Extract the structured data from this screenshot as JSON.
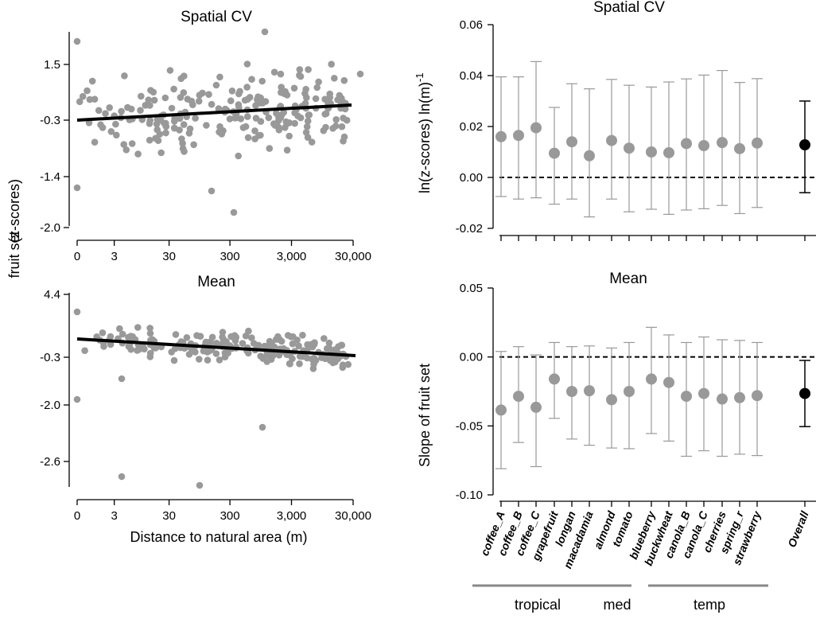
{
  "chart_data": [
    {
      "id": "left_top",
      "type": "scatter",
      "title": "Spatial CV",
      "xlabel": "",
      "ylabel": "",
      "xscale": "log10(d+1)",
      "x_ticks": [
        {
          "v": 0,
          "label": "0"
        },
        {
          "v": 3,
          "label": "3"
        },
        {
          "v": 30,
          "label": "30"
        },
        {
          "v": 300,
          "label": "300"
        },
        {
          "v": 3000,
          "label": "3,000"
        },
        {
          "v": 30000,
          "label": "30,000"
        }
      ],
      "y_ticks": [
        "1.5",
        "-0.3",
        "-1.4",
        "-2.0"
      ],
      "fit_line": {
        "x": [
          0,
          30000
        ],
        "y": [
          -0.3,
          0.0
        ]
      },
      "color": "#999999",
      "line_color": "#000000"
    },
    {
      "id": "left_bottom",
      "type": "scatter",
      "title": "Mean",
      "xlabel": "Distance to natural area (m)",
      "ylabel": "",
      "xscale": "log10(d+1)",
      "x_ticks": [
        {
          "v": 0,
          "label": "0"
        },
        {
          "v": 3,
          "label": "3"
        },
        {
          "v": 30,
          "label": "30"
        },
        {
          "v": 300,
          "label": "300"
        },
        {
          "v": 3000,
          "label": "3,000"
        },
        {
          "v": 30000,
          "label": "30,000"
        }
      ],
      "y_ticks": [
        "4.4",
        "-0.3",
        "-2.0",
        "-2.6"
      ],
      "fit_line": {
        "x": [
          0,
          30000
        ],
        "y": [
          -0.3,
          -1.1
        ]
      },
      "color": "#999999",
      "line_color": "#000000"
    },
    {
      "id": "right_top",
      "type": "errorbar",
      "title": "Spatial CV",
      "ylim": [
        -0.02,
        0.06
      ],
      "y_ticks": [
        {
          "v": -0.02,
          "label": "-0.02"
        },
        {
          "v": 0.0,
          "label": "0.00"
        },
        {
          "v": 0.02,
          "label": "0.02"
        },
        {
          "v": 0.04,
          "label": "0.04"
        },
        {
          "v": 0.06,
          "label": "0.06"
        }
      ],
      "reference_line": 0,
      "points": [
        {
          "name": "coffee_A",
          "value": 0.016,
          "low": -0.0075,
          "high": 0.0395
        },
        {
          "name": "coffee_B",
          "value": 0.0165,
          "low": -0.0085,
          "high": 0.0395
        },
        {
          "name": "coffee_C",
          "value": 0.0195,
          "low": -0.008,
          "high": 0.0455
        },
        {
          "name": "grapefruit",
          "value": 0.0095,
          "low": -0.0105,
          "high": 0.0275
        },
        {
          "name": "longan",
          "value": 0.014,
          "low": -0.0085,
          "high": 0.0368
        },
        {
          "name": "macadamia",
          "value": 0.0085,
          "low": -0.0155,
          "high": 0.0348
        },
        {
          "name": "almond",
          "value": 0.0145,
          "low": -0.0085,
          "high": 0.0385
        },
        {
          "name": "tomato",
          "value": 0.0115,
          "low": -0.0135,
          "high": 0.0362
        },
        {
          "name": "blueberry",
          "value": 0.01,
          "low": -0.0125,
          "high": 0.0355
        },
        {
          "name": "buckwheat",
          "value": 0.0097,
          "low": -0.0145,
          "high": 0.0375
        },
        {
          "name": "canola_B",
          "value": 0.0133,
          "low": -0.0128,
          "high": 0.0387
        },
        {
          "name": "canola_C",
          "value": 0.0125,
          "low": -0.0123,
          "high": 0.0402
        },
        {
          "name": "cherries",
          "value": 0.0137,
          "low": -0.011,
          "high": 0.042
        },
        {
          "name": "spring_r",
          "value": 0.0113,
          "low": -0.0142,
          "high": 0.0373
        },
        {
          "name": "strawberry",
          "value": 0.0135,
          "low": -0.0118,
          "high": 0.0388
        },
        {
          "name": "Overall",
          "value": 0.0128,
          "low": -0.006,
          "high": 0.03,
          "overall": true
        }
      ]
    },
    {
      "id": "right_bottom",
      "type": "errorbar",
      "title": "Mean",
      "ylim": [
        -0.1,
        0.05
      ],
      "y_ticks": [
        {
          "v": -0.1,
          "label": "-0.10"
        },
        {
          "v": -0.05,
          "label": "-0.05"
        },
        {
          "v": 0.0,
          "label": "0.00"
        },
        {
          "v": 0.05,
          "label": "0.05"
        }
      ],
      "reference_line": 0,
      "points": [
        {
          "name": "coffee_A",
          "value": -0.0385,
          "low": -0.081,
          "high": 0.004
        },
        {
          "name": "coffee_B",
          "value": -0.0285,
          "low": -0.062,
          "high": 0.0075
        },
        {
          "name": "coffee_C",
          "value": -0.0365,
          "low": -0.0795,
          "high": 0.0015
        },
        {
          "name": "grapefruit",
          "value": -0.016,
          "low": -0.0445,
          "high": 0.0105
        },
        {
          "name": "longan",
          "value": -0.025,
          "low": -0.0595,
          "high": 0.0075
        },
        {
          "name": "macadamia",
          "value": -0.0245,
          "low": -0.064,
          "high": 0.008
        },
        {
          "name": "almond",
          "value": -0.031,
          "low": -0.066,
          "high": 0.0065
        },
        {
          "name": "tomato",
          "value": -0.025,
          "low": -0.0665,
          "high": 0.0105
        },
        {
          "name": "blueberry",
          "value": -0.016,
          "low": -0.0555,
          "high": 0.0215
        },
        {
          "name": "buckwheat",
          "value": -0.0185,
          "low": -0.061,
          "high": 0.016
        },
        {
          "name": "canola_B",
          "value": -0.0285,
          "low": -0.072,
          "high": 0.0105
        },
        {
          "name": "canola_C",
          "value": -0.0265,
          "low": -0.068,
          "high": 0.0145
        },
        {
          "name": "cherries",
          "value": -0.0305,
          "low": -0.072,
          "high": 0.0125
        },
        {
          "name": "spring_r",
          "value": -0.0295,
          "low": -0.0705,
          "high": 0.012
        },
        {
          "name": "strawberry",
          "value": -0.028,
          "low": -0.0715,
          "high": 0.0105
        },
        {
          "name": "Overall",
          "value": -0.0265,
          "low": -0.0505,
          "high": -0.0025,
          "overall": true
        }
      ]
    }
  ],
  "labels": {
    "left_ylabel_a": "fruit set",
    "left_ylabel_b": "(z-scores)",
    "right_ylabel_bottom": "Slope of fruit set",
    "right_ylabel_top_main": "ln(z-scores) ln(m)",
    "right_ylabel_top_sup": "-1"
  },
  "groups": [
    {
      "label": "tropical"
    },
    {
      "label": "med"
    },
    {
      "label": "temp"
    }
  ],
  "colors": {
    "points": "#999999",
    "overall": "#000000",
    "errorbar": "#999999",
    "axis": "#000000"
  }
}
